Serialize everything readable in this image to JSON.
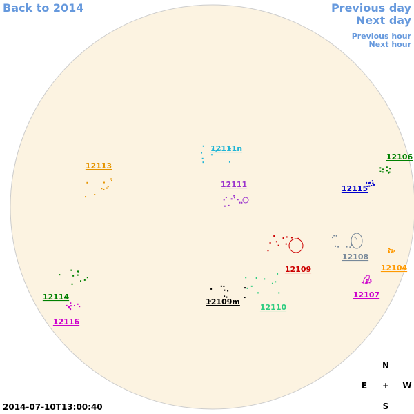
{
  "nav": {
    "back": "Back to 2014",
    "previous_day": "Previous day",
    "next_day": "Next day",
    "previous_hour": "Previous hour",
    "next_hour": "Next hour"
  },
  "regions": [
    {
      "label": "12113",
      "color": "#e59400"
    },
    {
      "label": "12111n",
      "color": "#1fb5d6"
    },
    {
      "label": "12111",
      "color": "#9a32cd"
    },
    {
      "label": "12106",
      "color": "#008000"
    },
    {
      "label": "12115",
      "color": "#0000cd"
    },
    {
      "label": "12108",
      "color": "#778899"
    },
    {
      "label": "12109",
      "color": "#cc0000"
    },
    {
      "label": "12104",
      "color": "#ff9900"
    },
    {
      "label": "12107",
      "color": "#cc00cc"
    },
    {
      "label": "12114",
      "color": "#008000"
    },
    {
      "label": "12116",
      "color": "#cc00cc"
    },
    {
      "label": "12109m",
      "color": "#000000"
    },
    {
      "label": "12110",
      "color": "#2ecc80"
    }
  ],
  "compass": {
    "north": "N",
    "east": "E",
    "center": "+",
    "west": "W",
    "south": "S"
  },
  "timestamp": "2014-07-10T13:00:40"
}
